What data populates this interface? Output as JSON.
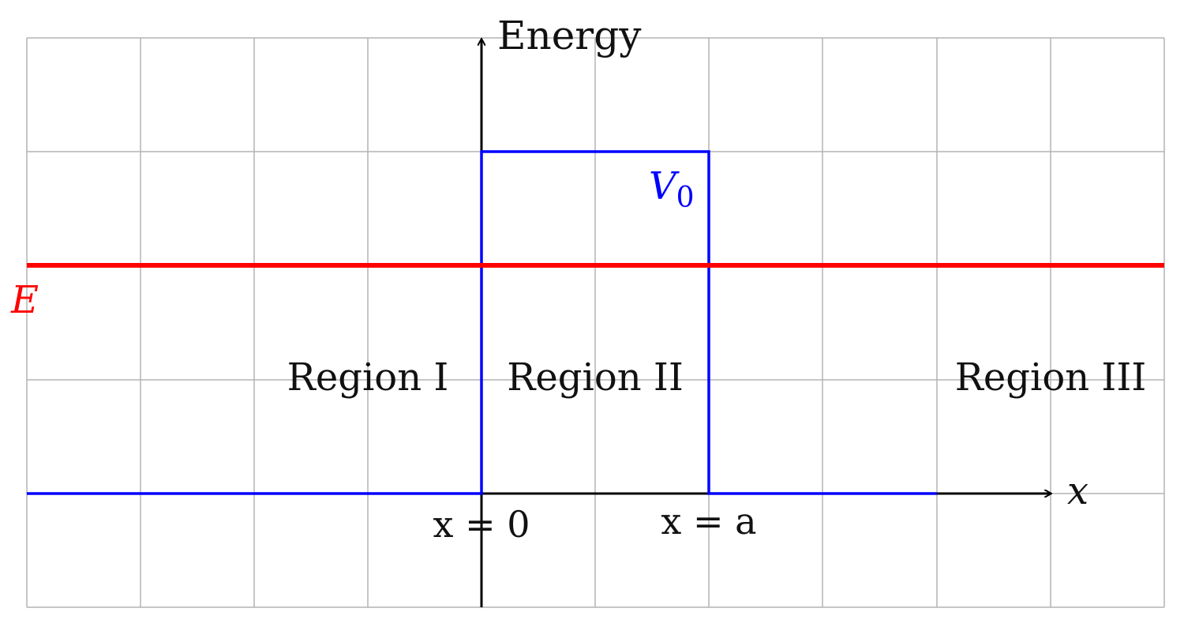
{
  "diagram": {
    "axis_labels": {
      "y": "Energy",
      "x": "x"
    },
    "energy_label": "E",
    "barrier_label": {
      "base": "V",
      "subscript": "0"
    },
    "region_labels": [
      "Region I",
      "Region II",
      "Region III"
    ],
    "position_labels": [
      "x = 0",
      "x = a"
    ],
    "colors": {
      "potential": "#0000ff",
      "energy": "#ff0000",
      "axis": "#000000",
      "grid": "#b3b3b3"
    }
  }
}
